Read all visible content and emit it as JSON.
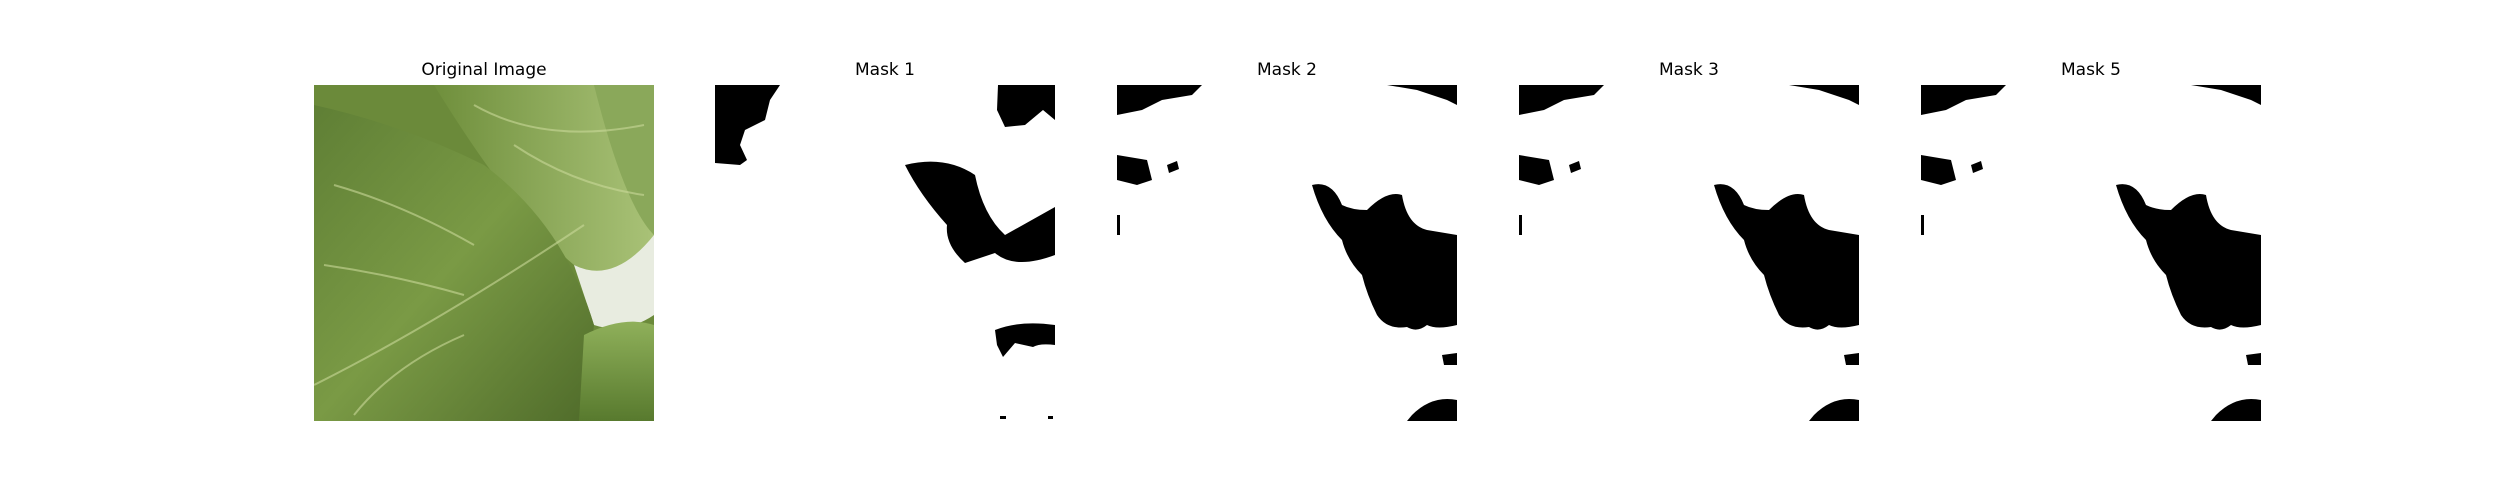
{
  "panels": [
    {
      "title": "Original Image",
      "kind": "photo"
    },
    {
      "title": "Mask 1",
      "kind": "mask"
    },
    {
      "title": "Mask 2",
      "kind": "mask"
    },
    {
      "title": "Mask 3",
      "kind": "mask"
    },
    {
      "title": "Mask 5",
      "kind": "mask"
    }
  ],
  "colors": {
    "background": "#ffffff",
    "mask_foreground": "#000000",
    "mask_background": "#ffffff",
    "leaf_dark": "#4f6b2a",
    "leaf_mid": "#7a9a45",
    "leaf_light": "#a9c277",
    "gap": "#e8ece0"
  }
}
